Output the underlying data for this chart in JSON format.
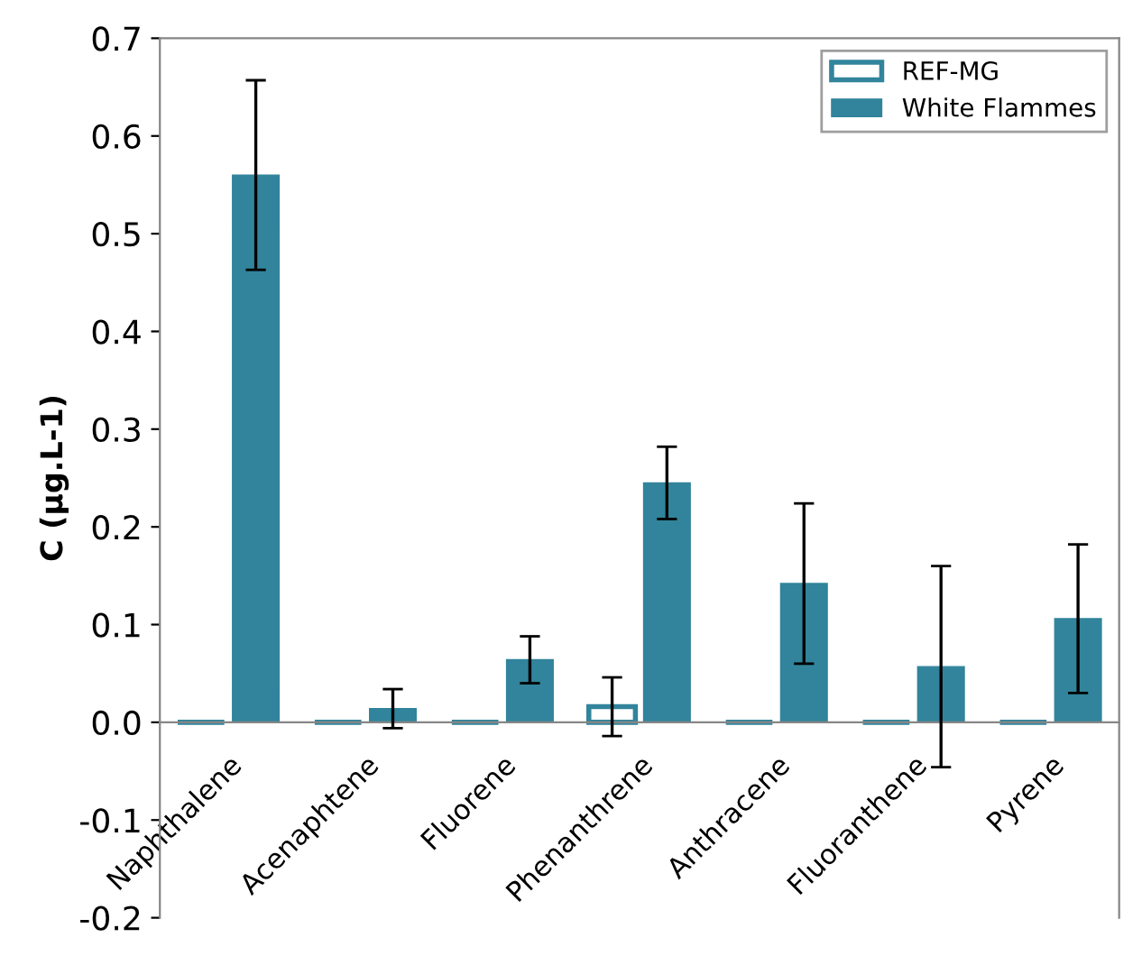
{
  "chart_data": {
    "type": "bar",
    "ylabel": "C (µg.L-1)",
    "categories": [
      "Naphthalene",
      "Acenaphtene",
      "Fluorene",
      "Phenanthrene",
      "Anthracene",
      "Fluoranthene",
      "Pyrene"
    ],
    "series": [
      {
        "name": "REF-MG",
        "color": "#31849b",
        "values": [
          0,
          0,
          0,
          0.016,
          0,
          0,
          0
        ],
        "errors": [
          null,
          null,
          null,
          0.03,
          null,
          null,
          null
        ]
      },
      {
        "name": "White Flammes",
        "color": "#31849b",
        "values": [
          0.56,
          0.014,
          0.064,
          0.245,
          0.142,
          0.057,
          0.106
        ],
        "errors": [
          0.097,
          0.02,
          0.024,
          0.037,
          0.082,
          0.103,
          0.076
        ]
      }
    ],
    "ylim": [
      -0.2,
      0.7
    ],
    "yticks": [
      {
        "value": -0.2,
        "label": "-0.2"
      },
      {
        "value": -0.1,
        "label": "-0.1"
      },
      {
        "value": 0,
        "label": "0.0"
      },
      {
        "value": 0.1,
        "label": "0.1"
      },
      {
        "value": 0.2,
        "label": "0.2"
      },
      {
        "value": 0.3,
        "label": "0.3"
      },
      {
        "value": 0.4,
        "label": "0.4"
      },
      {
        "value": 0.5,
        "label": "0.5"
      },
      {
        "value": 0.6,
        "label": "0.6"
      },
      {
        "value": 0.7,
        "label": "0.7"
      }
    ],
    "legend": "top right"
  }
}
